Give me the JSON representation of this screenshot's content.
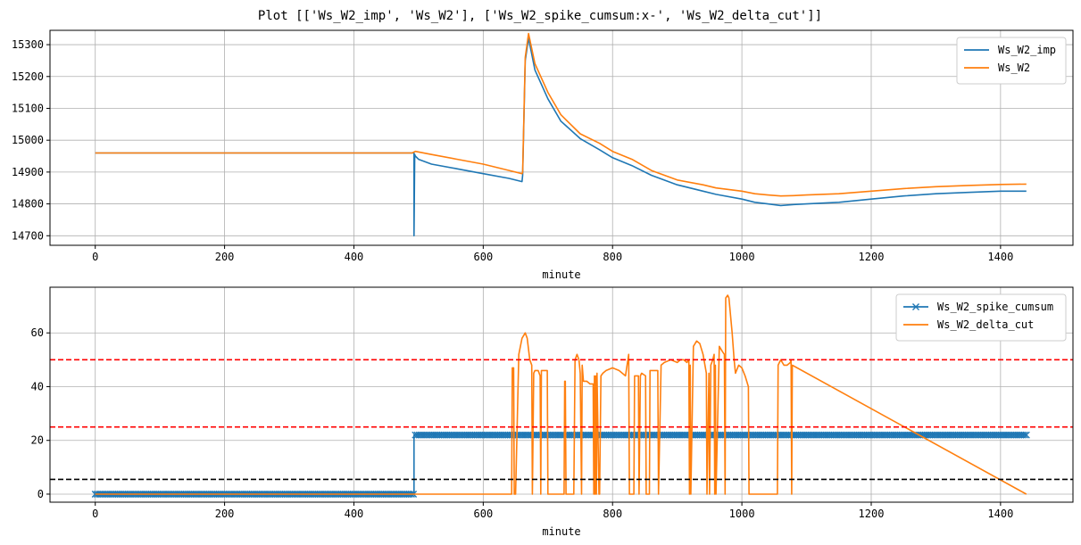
{
  "figure_title": "Plot [['Ws_W2_imp', 'Ws_W2'], ['Ws_W2_spike_cumsum:x-', 'Ws_W2_delta_cut']]",
  "chart_data": [
    {
      "type": "line",
      "title": "",
      "xlabel": "minute",
      "ylabel": "",
      "xlim": [
        -70,
        1512
      ],
      "ylim": [
        14670,
        15345
      ],
      "xticks": [
        0,
        200,
        400,
        600,
        800,
        1000,
        1200,
        1400
      ],
      "yticks": [
        14700,
        14800,
        14900,
        15000,
        15100,
        15200,
        15300
      ],
      "grid": true,
      "legend_position": "top-right",
      "series": [
        {
          "name": "Ws_W2_imp",
          "color": "#1f77b4",
          "x": [
            0,
            490,
            493,
            493,
            494,
            495,
            500,
            520,
            560,
            600,
            640,
            660,
            661,
            665,
            670,
            680,
            700,
            720,
            750,
            780,
            800,
            830,
            860,
            900,
            940,
            960,
            1000,
            1020,
            1040,
            1060,
            1080,
            1100,
            1150,
            1200,
            1250,
            1300,
            1350,
            1400,
            1440
          ],
          "values": [
            14960,
            14960,
            14960,
            14700,
            14955,
            14950,
            14940,
            14925,
            14910,
            14895,
            14880,
            14870,
            14890,
            15250,
            15320,
            15220,
            15130,
            15060,
            15005,
            14970,
            14945,
            14920,
            14890,
            14860,
            14840,
            14830,
            14815,
            14805,
            14800,
            14795,
            14798,
            14800,
            14805,
            14815,
            14825,
            14832,
            14836,
            14840,
            14840
          ]
        },
        {
          "name": "Ws_W2",
          "color": "#ff7f0e",
          "x": [
            0,
            490,
            495,
            520,
            560,
            600,
            640,
            660,
            661,
            665,
            670,
            680,
            700,
            720,
            750,
            780,
            800,
            830,
            860,
            900,
            940,
            960,
            1000,
            1020,
            1040,
            1060,
            1080,
            1100,
            1150,
            1200,
            1250,
            1300,
            1350,
            1400,
            1440
          ],
          "values": [
            14960,
            14960,
            14965,
            14955,
            14940,
            14925,
            14905,
            14895,
            14900,
            15260,
            15335,
            15240,
            15150,
            15080,
            15020,
            14990,
            14965,
            14940,
            14905,
            14875,
            14860,
            14850,
            14840,
            14832,
            14828,
            14825,
            14826,
            14828,
            14832,
            14840,
            14848,
            14854,
            14858,
            14861,
            14862
          ]
        }
      ]
    },
    {
      "type": "line",
      "title": "",
      "xlabel": "minute",
      "ylabel": "",
      "xlim": [
        -70,
        1512
      ],
      "ylim": [
        -3,
        77
      ],
      "xticks": [
        0,
        200,
        400,
        600,
        800,
        1000,
        1200,
        1400
      ],
      "yticks": [
        0,
        20,
        40,
        60
      ],
      "grid": true,
      "legend_position": "top-right",
      "hlines": [
        {
          "value": 50,
          "color": "#ff0000",
          "style": "dashed"
        },
        {
          "value": 25,
          "color": "#ff0000",
          "style": "dashed"
        },
        {
          "value": 5.5,
          "color": "#000000",
          "style": "dashed"
        }
      ],
      "series": [
        {
          "name": "Ws_W2_spike_cumsum",
          "color": "#1f77b4",
          "marker": "x",
          "x": [
            0,
            493,
            493,
            1440
          ],
          "values": [
            0,
            0,
            22,
            22
          ]
        },
        {
          "name": "Ws_W2_delta_cut",
          "color": "#ff7f0e",
          "x": [
            0,
            644,
            645,
            647,
            648,
            650,
            655,
            660,
            665,
            668,
            672,
            675,
            676,
            678,
            680,
            685,
            688,
            689,
            690,
            699,
            700,
            725,
            726,
            727,
            728,
            740,
            742,
            745,
            748,
            750,
            752,
            753,
            755,
            760,
            765,
            770,
            771,
            772,
            773,
            774,
            775,
            776,
            779,
            780,
            782,
            785,
            790,
            800,
            810,
            815,
            820,
            825,
            826,
            833,
            834,
            840,
            841,
            843,
            845,
            851,
            852,
            857,
            858,
            860,
            865,
            870,
            871,
            875,
            880,
            890,
            900,
            905,
            910,
            915,
            918,
            919,
            920,
            921,
            925,
            930,
            935,
            940,
            945,
            946,
            949,
            950,
            952,
            955,
            957,
            958,
            959,
            960,
            965,
            970,
            973,
            974,
            975,
            978,
            980,
            985,
            988,
            990,
            995,
            1000,
            1005,
            1010,
            1011,
            1055,
            1056,
            1060,
            1065,
            1070,
            1075,
            1076,
            1077,
            1078,
            1440
          ],
          "values": [
            0,
            0,
            47,
            47,
            0,
            0,
            52,
            58,
            60,
            58,
            50,
            48,
            0,
            45,
            46,
            46,
            44,
            0,
            46,
            46,
            0,
            0,
            42,
            42,
            0,
            0,
            50,
            52,
            50,
            45,
            0,
            48,
            42,
            42,
            41,
            41,
            0,
            44,
            0,
            44,
            0,
            45,
            0,
            0,
            44,
            45,
            46,
            47,
            46,
            45,
            44,
            52,
            0,
            0,
            44,
            44,
            0,
            44,
            45,
            44,
            0,
            0,
            46,
            46,
            46,
            46,
            0,
            48,
            49,
            50,
            49,
            50,
            50,
            49,
            50,
            0,
            48,
            0,
            55,
            57,
            56,
            52,
            45,
            0,
            45,
            0,
            48,
            50,
            52,
            0,
            48,
            0,
            55,
            53,
            52,
            0,
            73,
            74,
            73,
            60,
            50,
            45,
            48,
            47,
            44,
            40,
            0,
            0,
            48,
            50,
            48,
            48,
            49,
            50,
            0,
            48,
            0
          ]
        }
      ]
    }
  ]
}
